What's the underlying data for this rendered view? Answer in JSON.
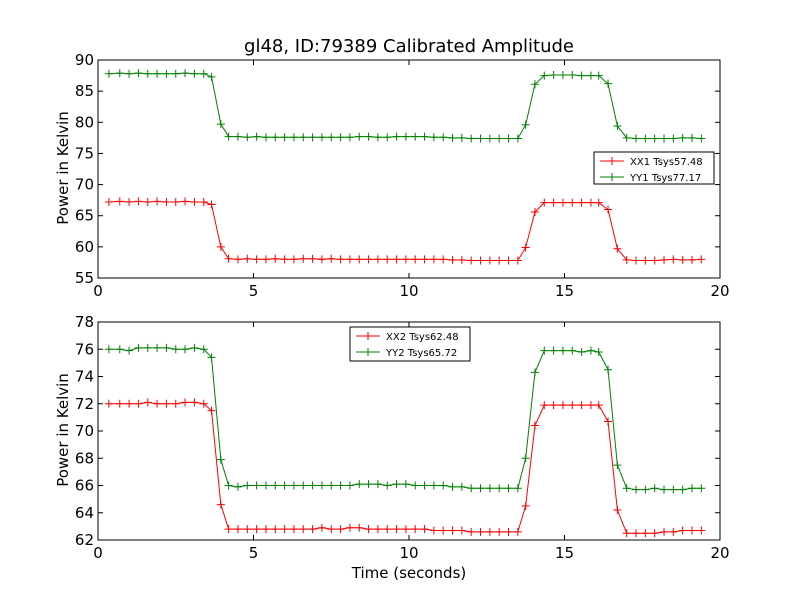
{
  "figure": {
    "title": "gl48, ID:79389 Calibrated Amplitude",
    "xlabel": "Time (seconds)"
  },
  "chart_data": [
    {
      "type": "line",
      "ylabel": "Power in Kelvin",
      "xlim": [
        0,
        20
      ],
      "ylim": [
        55,
        90
      ],
      "xticks": [
        0,
        5,
        10,
        15,
        20
      ],
      "yticks": [
        55,
        60,
        65,
        70,
        75,
        80,
        85,
        90
      ],
      "grid": false,
      "legend_position": "right",
      "x": [
        0.35,
        0.7,
        1.0,
        1.3,
        1.6,
        1.9,
        2.2,
        2.5,
        2.8,
        3.1,
        3.4,
        3.65,
        3.95,
        4.2,
        4.5,
        4.8,
        5.1,
        5.4,
        5.7,
        6.0,
        6.3,
        6.6,
        6.9,
        7.2,
        7.5,
        7.8,
        8.1,
        8.4,
        8.7,
        9.0,
        9.3,
        9.6,
        9.9,
        10.2,
        10.5,
        10.8,
        11.1,
        11.4,
        11.7,
        12.0,
        12.3,
        12.6,
        12.9,
        13.2,
        13.5,
        13.75,
        14.05,
        14.35,
        14.65,
        14.95,
        15.25,
        15.55,
        15.85,
        16.1,
        16.4,
        16.7,
        17.0,
        17.3,
        17.6,
        17.9,
        18.2,
        18.5,
        18.8,
        19.1,
        19.4
      ],
      "series": [
        {
          "name": "XX1 Tsys57.48",
          "color": "#ff0000",
          "values": [
            67.2,
            67.3,
            67.2,
            67.3,
            67.2,
            67.3,
            67.2,
            67.2,
            67.3,
            67.2,
            67.2,
            66.8,
            60.0,
            58.1,
            58.0,
            58.1,
            58.0,
            58.0,
            58.1,
            58.0,
            58.0,
            58.1,
            58.1,
            58.0,
            58.1,
            58.0,
            58.0,
            58.0,
            58.0,
            58.0,
            58.0,
            58.0,
            58.0,
            58.0,
            58.0,
            58.0,
            58.0,
            57.9,
            57.9,
            57.8,
            57.8,
            57.8,
            57.8,
            57.8,
            57.8,
            59.9,
            65.6,
            67.1,
            67.1,
            67.1,
            67.1,
            67.1,
            67.1,
            67.1,
            66.0,
            59.7,
            57.9,
            57.8,
            57.8,
            57.8,
            57.9,
            58.0,
            57.9,
            57.9,
            58.0
          ]
        },
        {
          "name": "YY1 Tsys77.17",
          "color": "#008000",
          "values": [
            87.8,
            87.9,
            87.8,
            87.9,
            87.8,
            87.8,
            87.8,
            87.8,
            87.9,
            87.8,
            87.8,
            87.3,
            79.7,
            77.7,
            77.7,
            77.6,
            77.7,
            77.6,
            77.6,
            77.6,
            77.6,
            77.6,
            77.6,
            77.6,
            77.6,
            77.6,
            77.6,
            77.7,
            77.7,
            77.6,
            77.6,
            77.7,
            77.7,
            77.7,
            77.7,
            77.6,
            77.6,
            77.5,
            77.5,
            77.4,
            77.4,
            77.4,
            77.4,
            77.4,
            77.4,
            79.6,
            86.1,
            87.5,
            87.6,
            87.6,
            87.6,
            87.5,
            87.5,
            87.5,
            86.2,
            79.4,
            77.5,
            77.4,
            77.4,
            77.4,
            77.4,
            77.4,
            77.5,
            77.5,
            77.4
          ]
        }
      ]
    },
    {
      "type": "line",
      "ylabel": "Power in Kelvin",
      "xlabel": "Time (seconds)",
      "xlim": [
        0,
        20
      ],
      "ylim": [
        62,
        78
      ],
      "xticks": [
        0,
        5,
        10,
        15,
        20
      ],
      "yticks": [
        62,
        64,
        66,
        68,
        70,
        72,
        74,
        76,
        78
      ],
      "grid": false,
      "legend_position": "top-center",
      "x": [
        0.35,
        0.7,
        1.0,
        1.3,
        1.6,
        1.9,
        2.2,
        2.5,
        2.8,
        3.1,
        3.4,
        3.65,
        3.95,
        4.2,
        4.5,
        4.8,
        5.1,
        5.4,
        5.7,
        6.0,
        6.3,
        6.6,
        6.9,
        7.2,
        7.5,
        7.8,
        8.1,
        8.4,
        8.7,
        9.0,
        9.3,
        9.6,
        9.9,
        10.2,
        10.5,
        10.8,
        11.1,
        11.4,
        11.7,
        12.0,
        12.3,
        12.6,
        12.9,
        13.2,
        13.5,
        13.75,
        14.05,
        14.35,
        14.65,
        14.95,
        15.25,
        15.55,
        15.85,
        16.1,
        16.4,
        16.7,
        17.0,
        17.3,
        17.6,
        17.9,
        18.2,
        18.5,
        18.8,
        19.1,
        19.4
      ],
      "series": [
        {
          "name": "XX2 Tsys62.48",
          "color": "#ff0000",
          "values": [
            72.0,
            72.0,
            72.0,
            72.0,
            72.1,
            72.0,
            72.0,
            72.0,
            72.1,
            72.1,
            72.0,
            71.5,
            64.6,
            62.8,
            62.8,
            62.8,
            62.8,
            62.8,
            62.8,
            62.8,
            62.8,
            62.8,
            62.8,
            62.9,
            62.8,
            62.8,
            62.9,
            62.9,
            62.8,
            62.8,
            62.8,
            62.8,
            62.8,
            62.8,
            62.8,
            62.7,
            62.7,
            62.7,
            62.7,
            62.6,
            62.6,
            62.6,
            62.6,
            62.6,
            62.6,
            64.5,
            70.4,
            71.9,
            71.9,
            71.9,
            71.9,
            71.9,
            71.9,
            71.9,
            70.7,
            64.2,
            62.5,
            62.5,
            62.5,
            62.5,
            62.6,
            62.6,
            62.7,
            62.7,
            62.7
          ]
        },
        {
          "name": "YY2 Tsys65.72",
          "color": "#008000",
          "values": [
            76.0,
            76.0,
            75.9,
            76.1,
            76.1,
            76.1,
            76.1,
            76.0,
            76.0,
            76.1,
            76.0,
            75.4,
            67.9,
            66.0,
            65.9,
            66.0,
            66.0,
            66.0,
            66.0,
            66.0,
            66.0,
            66.0,
            66.0,
            66.0,
            66.0,
            66.0,
            66.0,
            66.1,
            66.1,
            66.1,
            66.0,
            66.1,
            66.1,
            66.0,
            66.0,
            66.0,
            66.0,
            65.9,
            65.9,
            65.8,
            65.8,
            65.8,
            65.8,
            65.8,
            65.8,
            68.0,
            74.3,
            75.9,
            75.9,
            75.9,
            75.9,
            75.8,
            75.9,
            75.8,
            74.5,
            67.5,
            65.8,
            65.7,
            65.7,
            65.8,
            65.7,
            65.7,
            65.7,
            65.8,
            65.8
          ]
        }
      ]
    }
  ]
}
